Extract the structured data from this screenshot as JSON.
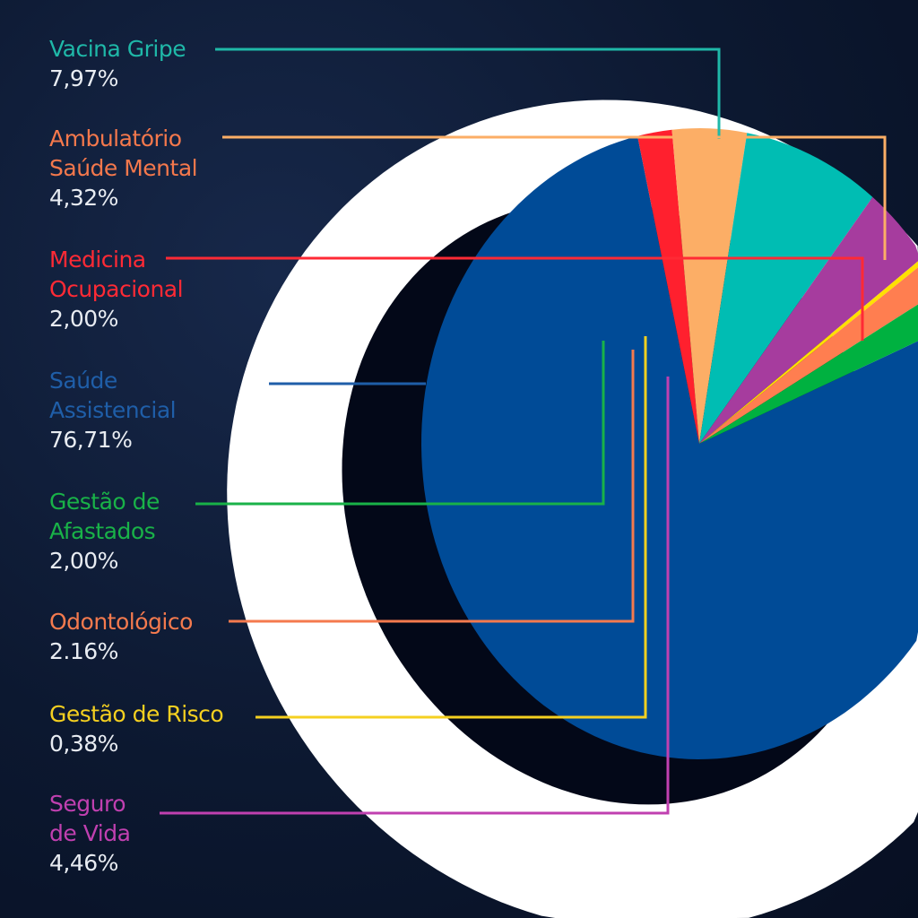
{
  "chart_data": {
    "type": "pie",
    "title": "",
    "slices": [
      {
        "label": "Saúde Assistencial",
        "label_lines": [
          "Saúde",
          "Assistencial"
        ],
        "value": 76.71,
        "value_text": "76,71%",
        "color": "#004b97",
        "text_color": "#1f5ea8"
      },
      {
        "label": "Medicina Ocupacional",
        "label_lines": [
          "Medicina",
          "Ocupacional"
        ],
        "value": 2.0,
        "value_text": "2,00%",
        "color": "#ff202e",
        "text_color": "#ff2a35"
      },
      {
        "label": "Ambulatório Saúde Mental",
        "label_lines": [
          "Ambulatório",
          "Saúde Mental"
        ],
        "value": 4.32,
        "value_text": "4,32%",
        "color": "#fcae66",
        "text_color": "#f4784c"
      },
      {
        "label": "Vacina Gripe",
        "label_lines": [
          "Vacina Gripe"
        ],
        "value": 7.97,
        "value_text": "7,97%",
        "color": "#00bdb3",
        "text_color": "#1fb8a8"
      },
      {
        "label": "Seguro de Vida",
        "label_lines": [
          "Seguro",
          "de Vida"
        ],
        "value": 4.46,
        "value_text": "4,46%",
        "color": "#a63c9e",
        "text_color": "#c040b0"
      },
      {
        "label": "Gestão de Risco",
        "label_lines": [
          "Gestão de Risco"
        ],
        "value": 0.38,
        "value_text": "0,38%",
        "color": "#ffe000",
        "text_color": "#f5d020"
      },
      {
        "label": "Odontológico",
        "label_lines": [
          "Odontológico"
        ],
        "value": 2.16,
        "value_text": "2.16%",
        "color": "#ff7e50",
        "text_color": "#f47a4e"
      },
      {
        "label": "Gestão de Afastados",
        "label_lines": [
          "Gestão de",
          "Afastados"
        ],
        "value": 2.0,
        "value_text": "2,00%",
        "color": "#00b140",
        "text_color": "#19b248"
      }
    ],
    "legend_order": [
      "Vacina Gripe",
      "Ambulatório Saúde Mental",
      "Medicina Ocupacional",
      "Saúde Assistencial",
      "Gestão de Afastados",
      "Odontológico",
      "Gestão de Risco",
      "Seguro de Vida"
    ],
    "legend_placement": "left"
  }
}
